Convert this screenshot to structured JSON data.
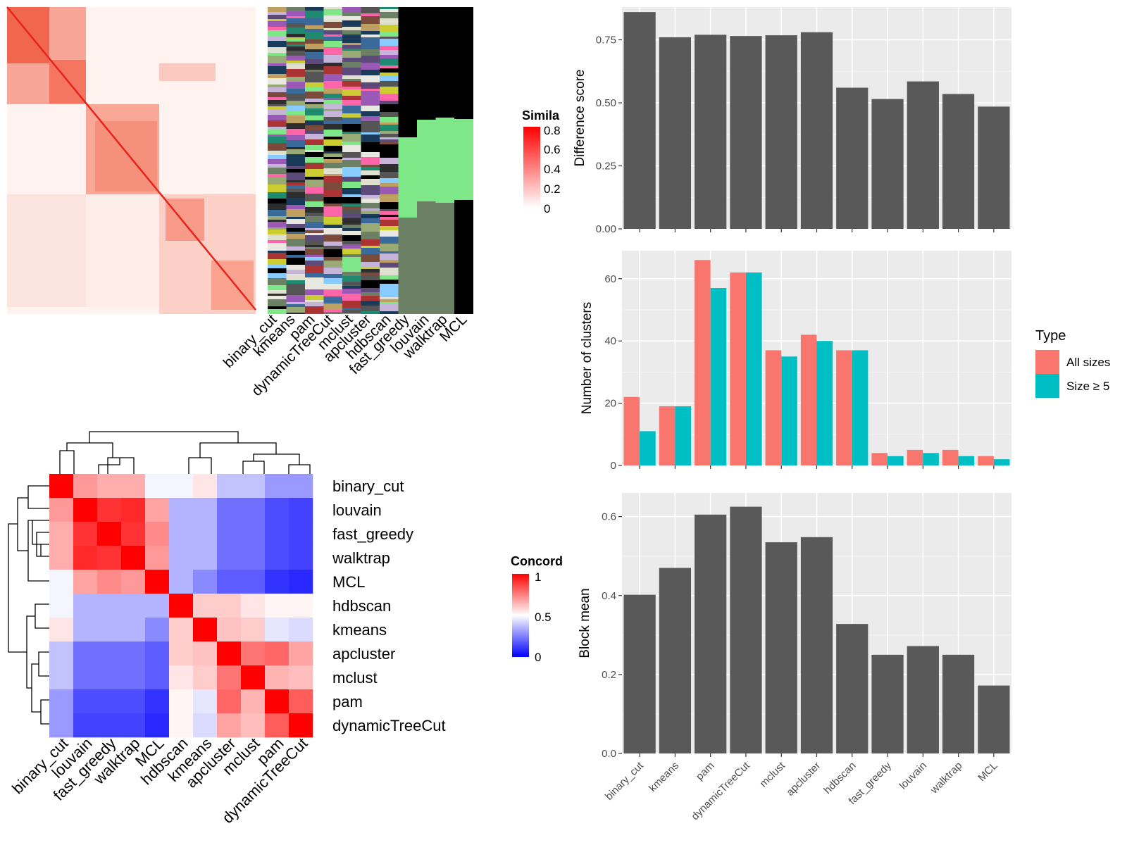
{
  "similarity_heatmap": {
    "legend_title": "Simila",
    "legend_ticks": [
      "0.8",
      "0.6",
      "0.4",
      "0.2",
      "0"
    ],
    "column_labels": [
      "binary_cut",
      "kmeans",
      "pam",
      "dynamicTreeCut",
      "mclust",
      "apcluster",
      "hdbscan",
      "fast_greedy",
      "louvain",
      "walktrap",
      "MCL"
    ]
  },
  "concordance_heatmap": {
    "legend_title": "Concord",
    "legend_ticks": [
      "1",
      "0.5",
      "0"
    ],
    "row_labels": [
      "binary_cut",
      "louvain",
      "fast_greedy",
      "walktrap",
      "MCL",
      "hdbscan",
      "kmeans",
      "apcluster",
      "mclust",
      "pam",
      "dynamicTreeCut"
    ],
    "col_labels": [
      "binary_cut",
      "louvain",
      "fast_greedy",
      "walktrap",
      "MCL",
      "hdbscan",
      "kmeans",
      "apcluster",
      "mclust",
      "pam",
      "dynamicTreeCut"
    ]
  },
  "chart_data": [
    {
      "type": "heatmap",
      "title": "",
      "rows": [
        "binary_cut",
        "louvain",
        "fast_greedy",
        "walktrap",
        "MCL",
        "hdbscan",
        "kmeans",
        "apcluster",
        "mclust",
        "pam",
        "dynamicTreeCut"
      ],
      "cols": [
        "binary_cut",
        "louvain",
        "fast_greedy",
        "walktrap",
        "MCL",
        "hdbscan",
        "kmeans",
        "apcluster",
        "mclust",
        "pam",
        "dynamicTreeCut"
      ],
      "values": [
        [
          1.0,
          0.7,
          0.66,
          0.66,
          0.48,
          0.48,
          0.55,
          0.38,
          0.38,
          0.3,
          0.3
        ],
        [
          0.7,
          1.0,
          0.9,
          0.92,
          0.68,
          0.35,
          0.35,
          0.22,
          0.22,
          0.15,
          0.13
        ],
        [
          0.66,
          0.9,
          1.0,
          0.9,
          0.73,
          0.35,
          0.35,
          0.22,
          0.22,
          0.15,
          0.13
        ],
        [
          0.66,
          0.92,
          0.9,
          1.0,
          0.7,
          0.35,
          0.35,
          0.22,
          0.22,
          0.15,
          0.13
        ],
        [
          0.48,
          0.68,
          0.73,
          0.7,
          1.0,
          0.35,
          0.27,
          0.18,
          0.18,
          0.1,
          0.08
        ],
        [
          0.48,
          0.35,
          0.35,
          0.35,
          0.35,
          1.0,
          0.6,
          0.6,
          0.55,
          0.52,
          0.52
        ],
        [
          0.55,
          0.35,
          0.35,
          0.35,
          0.27,
          0.6,
          1.0,
          0.62,
          0.6,
          0.45,
          0.43
        ],
        [
          0.38,
          0.22,
          0.22,
          0.22,
          0.18,
          0.6,
          0.62,
          1.0,
          0.77,
          0.8,
          0.68
        ],
        [
          0.38,
          0.22,
          0.22,
          0.22,
          0.18,
          0.55,
          0.6,
          0.77,
          1.0,
          0.65,
          0.63
        ],
        [
          0.3,
          0.15,
          0.15,
          0.15,
          0.1,
          0.52,
          0.45,
          0.8,
          0.65,
          1.0,
          0.82
        ],
        [
          0.3,
          0.13,
          0.13,
          0.13,
          0.08,
          0.52,
          0.43,
          0.68,
          0.63,
          0.82,
          1.0
        ]
      ],
      "color_scale": {
        "min": 0,
        "mid": 0.5,
        "max": 1,
        "low": "#0000ff",
        "midcolor": "#ffffff",
        "high": "#ff0000"
      },
      "legend_title": "Concord"
    },
    {
      "type": "bar",
      "categories": [
        "binary_cut",
        "kmeans",
        "pam",
        "dynamicTreeCut",
        "mclust",
        "apcluster",
        "hdbscan",
        "fast_greedy",
        "louvain",
        "walktrap",
        "MCL"
      ],
      "values": [
        0.86,
        0.76,
        0.77,
        0.765,
        0.768,
        0.78,
        0.56,
        0.515,
        0.585,
        0.535,
        0.485
      ],
      "ylabel": "Difference score",
      "xlabel": "",
      "ylim": [
        0,
        0.88
      ],
      "yticks": [
        "0.00",
        "0.25",
        "0.50",
        "0.75"
      ],
      "grid": true
    },
    {
      "type": "bar",
      "categories": [
        "binary_cut",
        "kmeans",
        "pam",
        "dynamicTreeCut",
        "mclust",
        "apcluster",
        "hdbscan",
        "fast_greedy",
        "louvain",
        "walktrap",
        "MCL"
      ],
      "series": [
        {
          "name": "All sizes",
          "values": [
            22,
            19,
            66,
            62,
            37,
            42,
            37,
            4,
            5,
            5,
            3
          ],
          "color": "#f8766d"
        },
        {
          "name": "Size ≥ 5",
          "values": [
            11,
            19,
            57,
            62,
            35,
            40,
            37,
            3,
            4,
            3,
            2
          ],
          "color": "#00bfc4"
        }
      ],
      "ylabel": "Number of clusters",
      "ylim": [
        0,
        69
      ],
      "yticks": [
        "0",
        "20",
        "40",
        "60"
      ],
      "legend_title": "Type",
      "legend": "right",
      "grid": true
    },
    {
      "type": "bar",
      "categories": [
        "binary_cut",
        "kmeans",
        "pam",
        "dynamicTreeCut",
        "mclust",
        "apcluster",
        "hdbscan",
        "fast_greedy",
        "louvain",
        "walktrap",
        "MCL"
      ],
      "values": [
        0.402,
        0.47,
        0.605,
        0.625,
        0.535,
        0.548,
        0.328,
        0.25,
        0.272,
        0.25,
        0.172
      ],
      "ylabel": "Block mean",
      "ylim": [
        0,
        0.66
      ],
      "yticks": [
        "0.0",
        "0.2",
        "0.4",
        "0.6"
      ],
      "grid": true
    }
  ],
  "colors": {
    "panel_bg": "#ebebeb",
    "bar_fill": "#595959",
    "grid": "#ffffff",
    "axis_text": "#4d4d4d"
  }
}
